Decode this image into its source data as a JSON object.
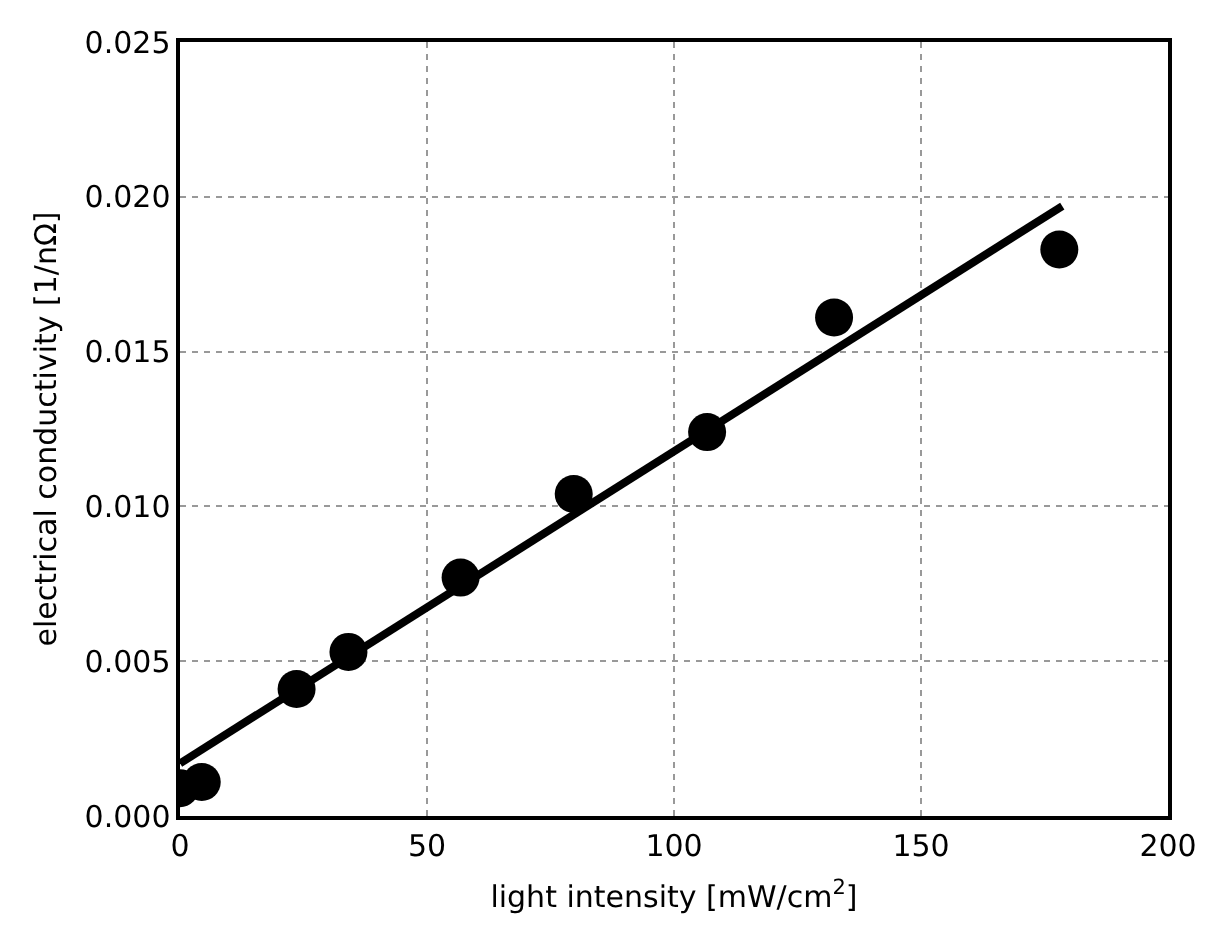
{
  "chart_data": {
    "type": "scatter",
    "xlabel": "light intensity [mW/cm$^{2}$]",
    "ylabel": "electrical conductivity [1/nΩ]",
    "xlim": [
      0,
      200
    ],
    "xticks": [
      0,
      50,
      100,
      150,
      200
    ],
    "ylim": [
      0,
      0.025
    ],
    "yticks": [
      {
        "value": 0,
        "label": "0.000"
      },
      {
        "value": 0.005,
        "label": "0.005"
      },
      {
        "value": 0.01,
        "label": "0.010"
      },
      {
        "value": 0.015,
        "label": "0.015"
      },
      {
        "value": 0.02,
        "label": "0.020"
      },
      {
        "value": 0.025,
        "label": "0.025"
      }
    ],
    "grid": true,
    "series": [
      {
        "marker": "circle",
        "color": "#000000",
        "x": [
          0,
          4.4,
          23.6,
          34.1,
          56.8,
          79.7,
          106.7,
          132.4,
          178
        ],
        "values": [
          0.0009,
          0.0011,
          0.0041,
          0.0053,
          0.0077,
          0.0104,
          0.0124,
          0.0161,
          0.0183
        ]
      },
      {
        "type": "line",
        "color": "#000000",
        "line_style": "solid",
        "x": [
          0,
          178.6
        ],
        "values": [
          0.0017,
          0.0197
        ]
      }
    ]
  }
}
